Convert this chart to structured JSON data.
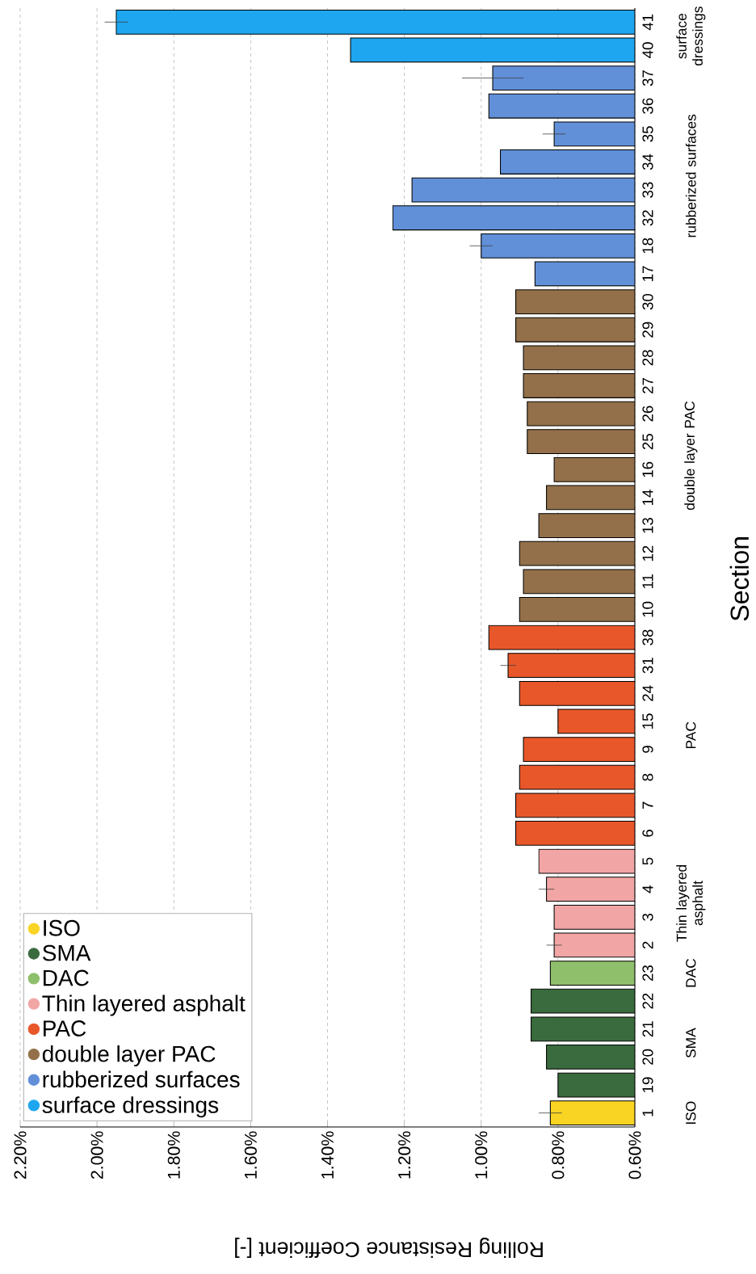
{
  "chart_data": {
    "type": "bar",
    "orientation": "horizontal",
    "xlabel": "Rolling Resistance Coefficient [-]",
    "ylabel": "Section",
    "categories": [
      "41",
      "40",
      "37",
      "36",
      "35",
      "34",
      "33",
      "32",
      "18",
      "17",
      "30",
      "29",
      "28",
      "27",
      "26",
      "25",
      "16",
      "14",
      "13",
      "12",
      "11",
      "10",
      "38",
      "31",
      "24",
      "15",
      "9",
      "8",
      "7",
      "6",
      "5",
      "4",
      "3",
      "2",
      "23",
      "22",
      "21",
      "20",
      "19",
      "1"
    ],
    "xlim": [
      2.2,
      0.6
    ],
    "xticks": [
      {
        "value": 0.6,
        "label": "0.60%"
      },
      {
        "value": 0.8,
        "label": "0.80%"
      },
      {
        "value": 1.0,
        "label": "1.00%"
      },
      {
        "value": 1.2,
        "label": "1.20%"
      },
      {
        "value": 1.4,
        "label": "1.40%"
      },
      {
        "value": 1.6,
        "label": "1.60%"
      },
      {
        "value": 1.8,
        "label": "1.80%"
      },
      {
        "value": 2.0,
        "label": "2.00%"
      },
      {
        "value": 2.2,
        "label": "2.20%"
      }
    ],
    "grid": "x",
    "legend": "bottom left",
    "series": [
      {
        "name": "ISO",
        "color": "#f9d423",
        "values": [
          null,
          null,
          null,
          null,
          null,
          null,
          null,
          null,
          null,
          null,
          null,
          null,
          null,
          null,
          null,
          null,
          null,
          null,
          null,
          null,
          null,
          null,
          null,
          null,
          null,
          null,
          null,
          null,
          null,
          null,
          null,
          null,
          null,
          null,
          null,
          null,
          null,
          null,
          null,
          0.82
        ],
        "errors": [
          null,
          null,
          null,
          null,
          null,
          null,
          null,
          null,
          null,
          null,
          null,
          null,
          null,
          null,
          null,
          null,
          null,
          null,
          null,
          null,
          null,
          null,
          null,
          null,
          null,
          null,
          null,
          null,
          null,
          null,
          null,
          null,
          null,
          null,
          null,
          null,
          null,
          null,
          null,
          0.03
        ]
      },
      {
        "name": "SMA",
        "color": "#3a6b3e",
        "values": [
          null,
          null,
          null,
          null,
          null,
          null,
          null,
          null,
          null,
          null,
          null,
          null,
          null,
          null,
          null,
          null,
          null,
          null,
          null,
          null,
          null,
          null,
          null,
          null,
          null,
          null,
          null,
          null,
          null,
          null,
          null,
          null,
          null,
          null,
          null,
          0.87,
          0.87,
          0.83,
          0.8,
          null
        ]
      },
      {
        "name": "DAC",
        "color": "#8fbf6a",
        "values": [
          null,
          null,
          null,
          null,
          null,
          null,
          null,
          null,
          null,
          null,
          null,
          null,
          null,
          null,
          null,
          null,
          null,
          null,
          null,
          null,
          null,
          null,
          null,
          null,
          null,
          null,
          null,
          null,
          null,
          null,
          null,
          null,
          null,
          null,
          0.82,
          null,
          null,
          null,
          null,
          null
        ]
      },
      {
        "name": "Thin layered asphalt",
        "color": "#f2a5a5",
        "values": [
          null,
          null,
          null,
          null,
          null,
          null,
          null,
          null,
          null,
          null,
          null,
          null,
          null,
          null,
          null,
          null,
          null,
          null,
          null,
          null,
          null,
          null,
          null,
          null,
          null,
          null,
          null,
          null,
          null,
          null,
          0.85,
          0.83,
          0.81,
          0.81,
          null,
          null,
          null,
          null,
          null,
          null
        ],
        "errors": [
          null,
          null,
          null,
          null,
          null,
          null,
          null,
          null,
          null,
          null,
          null,
          null,
          null,
          null,
          null,
          null,
          null,
          null,
          null,
          null,
          null,
          null,
          null,
          null,
          null,
          null,
          null,
          null,
          null,
          null,
          null,
          0.02,
          null,
          0.02,
          null,
          null,
          null,
          null,
          null,
          null
        ]
      },
      {
        "name": "PAC",
        "color": "#e8572a",
        "values": [
          null,
          null,
          null,
          null,
          null,
          null,
          null,
          null,
          null,
          null,
          null,
          null,
          null,
          null,
          null,
          null,
          null,
          null,
          null,
          null,
          null,
          null,
          0.98,
          0.93,
          0.9,
          0.8,
          0.89,
          0.9,
          0.91,
          0.91,
          null,
          null,
          null,
          null,
          null,
          null,
          null,
          null,
          null,
          null
        ],
        "errors": [
          null,
          null,
          null,
          null,
          null,
          null,
          null,
          null,
          null,
          null,
          null,
          null,
          null,
          null,
          null,
          null,
          null,
          null,
          null,
          null,
          null,
          null,
          null,
          0.02,
          null,
          null,
          null,
          null,
          null,
          null,
          null,
          null,
          null,
          null,
          null,
          null,
          null,
          null,
          null,
          null
        ]
      },
      {
        "name": "double layer PAC",
        "color": "#93704a",
        "values": [
          null,
          null,
          null,
          null,
          null,
          null,
          null,
          null,
          null,
          null,
          0.91,
          0.91,
          0.89,
          0.89,
          0.88,
          0.88,
          0.81,
          0.83,
          0.85,
          0.9,
          0.89,
          0.9,
          null,
          null,
          null,
          null,
          null,
          null,
          null,
          null,
          null,
          null,
          null,
          null,
          null,
          null,
          null,
          null,
          null,
          null
        ]
      },
      {
        "name": "rubberized surfaces",
        "color": "#6190d8",
        "values": [
          null,
          null,
          0.97,
          0.98,
          0.81,
          0.95,
          1.18,
          1.23,
          1.0,
          0.86,
          null,
          null,
          null,
          null,
          null,
          null,
          null,
          null,
          null,
          null,
          null,
          null,
          null,
          null,
          null,
          null,
          null,
          null,
          null,
          null,
          null,
          null,
          null,
          null,
          null,
          null,
          null,
          null,
          null,
          null
        ],
        "errors": [
          null,
          null,
          0.08,
          null,
          0.03,
          null,
          null,
          null,
          0.03,
          null,
          null,
          null,
          null,
          null,
          null,
          null,
          null,
          null,
          null,
          null,
          null,
          null,
          null,
          null,
          null,
          null,
          null,
          null,
          null,
          null,
          null,
          null,
          null,
          null,
          null,
          null,
          null,
          null,
          null,
          null
        ]
      },
      {
        "name": "surface dressings",
        "color": "#1ea6f0",
        "values": [
          1.95,
          1.34,
          null,
          null,
          null,
          null,
          null,
          null,
          null,
          null,
          null,
          null,
          null,
          null,
          null,
          null,
          null,
          null,
          null,
          null,
          null,
          null,
          null,
          null,
          null,
          null,
          null,
          null,
          null,
          null,
          null,
          null,
          null,
          null,
          null,
          null,
          null,
          null,
          null,
          null
        ],
        "errors": [
          0.03,
          null,
          null,
          null,
          null,
          null,
          null,
          null,
          null,
          null,
          null,
          null,
          null,
          null,
          null,
          null,
          null,
          null,
          null,
          null,
          null,
          null,
          null,
          null,
          null,
          null,
          null,
          null,
          null,
          null,
          null,
          null,
          null,
          null,
          null,
          null,
          null,
          null,
          null,
          null
        ]
      }
    ]
  }
}
